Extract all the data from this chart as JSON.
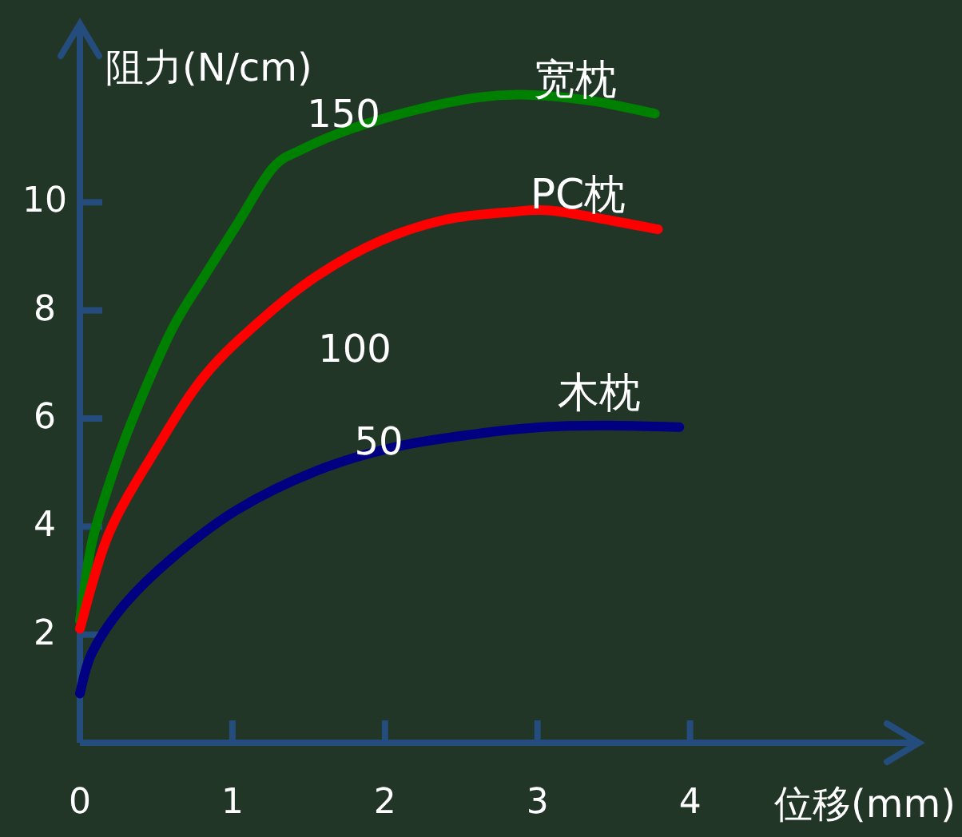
{
  "chart_data": {
    "type": "line",
    "xlabel": "位移(mm)",
    "ylabel": "阻力(N/cm)",
    "xlim": [
      0,
      5.5
    ],
    "ylim": [
      0,
      13.3
    ],
    "xticks": [
      0,
      1,
      2,
      3,
      4
    ],
    "yticks": [
      2,
      4,
      6,
      8,
      10
    ],
    "legend": false,
    "grid": false,
    "series": [
      {
        "name": "宽枕",
        "color": "#008000",
        "x": [
          0,
          0.08,
          0.24,
          0.4,
          0.61,
          0.82,
          1.03,
          1.26,
          1.45,
          1.77,
          2.19,
          2.61,
          2.93,
          3.35,
          3.77
        ],
        "values": [
          2.26,
          3.72,
          5.19,
          6.36,
          7.68,
          8.65,
          9.59,
          10.62,
          10.97,
          11.35,
          11.7,
          11.94,
          11.99,
          11.88,
          11.64
        ]
      },
      {
        "name": "PC枕",
        "color": "#ff0000",
        "x": [
          0,
          0.19,
          0.51,
          0.82,
          1.19,
          1.56,
          1.98,
          2.4,
          2.82,
          3.08,
          3.45,
          3.79
        ],
        "values": [
          2.11,
          3.87,
          5.48,
          6.8,
          7.83,
          8.65,
          9.3,
          9.68,
          9.82,
          9.85,
          9.68,
          9.5
        ]
      },
      {
        "name": "木枕",
        "color": "#000080",
        "x": [
          0,
          0.08,
          0.29,
          0.61,
          1.03,
          1.56,
          2.08,
          2.61,
          3.03,
          3.45,
          3.93
        ],
        "values": [
          0.91,
          1.67,
          2.55,
          3.43,
          4.31,
          5.04,
          5.48,
          5.72,
          5.84,
          5.87,
          5.84
        ]
      }
    ],
    "annotations": [
      "150",
      "100",
      "50"
    ]
  }
}
